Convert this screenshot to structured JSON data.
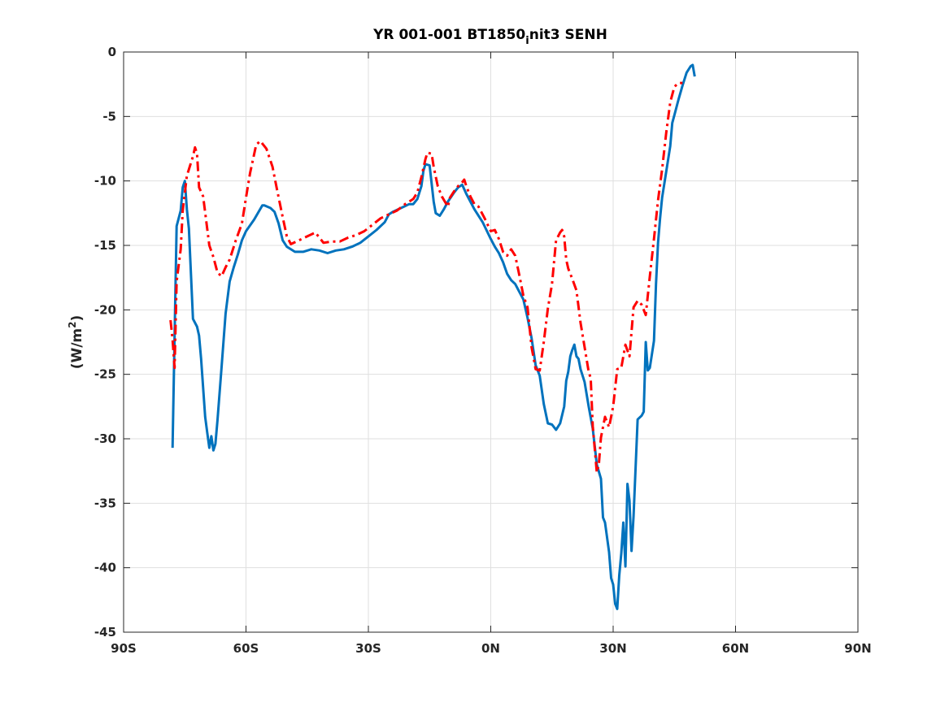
{
  "chart_data": {
    "type": "line",
    "title": "YR 001-001 BT1850",
    "title_sub": "i",
    "title_rest": "nit3 SENH",
    "ylabel": "(W/m",
    "ylabel_sup": "2",
    "ylabel_end": ")",
    "xlabel": "",
    "xlim": [
      -90,
      90
    ],
    "ylim": [
      -45,
      0
    ],
    "grid": true,
    "x_ticks": [
      {
        "value": -90,
        "label": "90S"
      },
      {
        "value": -60,
        "label": "60S"
      },
      {
        "value": -30,
        "label": "30S"
      },
      {
        "value": 0,
        "label": "0N"
      },
      {
        "value": 30,
        "label": "30N"
      },
      {
        "value": 60,
        "label": "60N"
      },
      {
        "value": 90,
        "label": "90N"
      }
    ],
    "y_ticks": [
      {
        "value": 0,
        "label": "0"
      },
      {
        "value": -5,
        "label": "-5"
      },
      {
        "value": -10,
        "label": "-10"
      },
      {
        "value": -15,
        "label": "-15"
      },
      {
        "value": -20,
        "label": "-20"
      },
      {
        "value": -25,
        "label": "-25"
      },
      {
        "value": -30,
        "label": "-30"
      },
      {
        "value": -35,
        "label": "-35"
      },
      {
        "value": -40,
        "label": "-40"
      },
      {
        "value": -45,
        "label": "-45"
      }
    ],
    "series": [
      {
        "color": "#0072bd",
        "style": "solid",
        "points": [
          [
            -78,
            -30.7
          ],
          [
            -77.5,
            -22
          ],
          [
            -77,
            -13.5
          ],
          [
            -76,
            -12.3
          ],
          [
            -75.5,
            -10.5
          ],
          [
            -75,
            -10
          ],
          [
            -74.5,
            -12.2
          ],
          [
            -74,
            -13.7
          ],
          [
            -73,
            -20.7
          ],
          [
            -72,
            -21.3
          ],
          [
            -71.5,
            -22
          ],
          [
            -71,
            -23.8
          ],
          [
            -70,
            -28.3
          ],
          [
            -69.5,
            -29.5
          ],
          [
            -69,
            -30.7
          ],
          [
            -68.5,
            -29.8
          ],
          [
            -68,
            -30.9
          ],
          [
            -67.5,
            -30.4
          ],
          [
            -67,
            -28.6
          ],
          [
            -66,
            -24.5
          ],
          [
            -65,
            -20.3
          ],
          [
            -64,
            -17.8
          ],
          [
            -63,
            -16.7
          ],
          [
            -62,
            -15.7
          ],
          [
            -61,
            -14.6
          ],
          [
            -60,
            -13.9
          ],
          [
            -58,
            -13
          ],
          [
            -56,
            -11.9
          ],
          [
            -55.5,
            -11.9
          ],
          [
            -54,
            -12.1
          ],
          [
            -53,
            -12.4
          ],
          [
            -52,
            -13.3
          ],
          [
            -51,
            -14.6
          ],
          [
            -50,
            -15.1
          ],
          [
            -48,
            -15.5
          ],
          [
            -46,
            -15.5
          ],
          [
            -44,
            -15.3
          ],
          [
            -42,
            -15.4
          ],
          [
            -40,
            -15.6
          ],
          [
            -38,
            -15.4
          ],
          [
            -36,
            -15.3
          ],
          [
            -34,
            -15.1
          ],
          [
            -32,
            -14.8
          ],
          [
            -30,
            -14.3
          ],
          [
            -28,
            -13.8
          ],
          [
            -26,
            -13.2
          ],
          [
            -25,
            -12.6
          ],
          [
            -24,
            -12.4
          ],
          [
            -22,
            -12.1
          ],
          [
            -20,
            -11.8
          ],
          [
            -19,
            -11.8
          ],
          [
            -18,
            -11.4
          ],
          [
            -17,
            -10.4
          ],
          [
            -16.5,
            -9.2
          ],
          [
            -16,
            -8.7
          ],
          [
            -15,
            -8.8
          ],
          [
            -14.5,
            -10.2
          ],
          [
            -14,
            -11.6
          ],
          [
            -13.5,
            -12.5
          ],
          [
            -12.5,
            -12.7
          ],
          [
            -11.5,
            -12.2
          ],
          [
            -10.5,
            -11.6
          ],
          [
            -9,
            -10.9
          ],
          [
            -8,
            -10.5
          ],
          [
            -7,
            -10.3
          ],
          [
            -6,
            -11
          ],
          [
            -4,
            -12.2
          ],
          [
            -2,
            -13.2
          ],
          [
            0,
            -14.5
          ],
          [
            1,
            -15.1
          ],
          [
            2,
            -15.6
          ],
          [
            3,
            -16.3
          ],
          [
            4,
            -17.2
          ],
          [
            5,
            -17.7
          ],
          [
            6,
            -18
          ],
          [
            7,
            -18.6
          ],
          [
            8,
            -19.2
          ],
          [
            9,
            -20.6
          ],
          [
            10,
            -22.2
          ],
          [
            11,
            -24.3
          ],
          [
            12,
            -25.1
          ],
          [
            13,
            -27.3
          ],
          [
            14,
            -28.8
          ],
          [
            15,
            -28.9
          ],
          [
            16,
            -29.3
          ],
          [
            17,
            -28.8
          ],
          [
            18,
            -27.5
          ],
          [
            18.5,
            -25.5
          ],
          [
            19,
            -24.8
          ],
          [
            19.5,
            -23.6
          ],
          [
            20,
            -23.1
          ],
          [
            20.5,
            -22.7
          ],
          [
            21,
            -23.6
          ],
          [
            21.5,
            -23.8
          ],
          [
            22,
            -24.6
          ],
          [
            23,
            -25.6
          ],
          [
            24,
            -27.5
          ],
          [
            25,
            -29.2
          ],
          [
            26,
            -32
          ],
          [
            27,
            -33.1
          ],
          [
            27.5,
            -36.1
          ],
          [
            28,
            -36.5
          ],
          [
            29,
            -38.8
          ],
          [
            29.5,
            -40.8
          ],
          [
            30,
            -41.3
          ],
          [
            30.5,
            -42.8
          ],
          [
            31,
            -43.2
          ],
          [
            31.5,
            -40.6
          ],
          [
            32,
            -38.9
          ],
          [
            32.5,
            -36.5
          ],
          [
            33,
            -39.9
          ],
          [
            33.5,
            -33.5
          ],
          [
            34,
            -34.8
          ],
          [
            34.5,
            -38.7
          ],
          [
            35,
            -36
          ],
          [
            36,
            -28.5
          ],
          [
            37,
            -28.2
          ],
          [
            37.5,
            -27.9
          ],
          [
            38,
            -22.5
          ],
          [
            38.5,
            -24.7
          ],
          [
            39,
            -24.5
          ],
          [
            40,
            -22.4
          ],
          [
            40.5,
            -18
          ],
          [
            41,
            -14.8
          ],
          [
            41.5,
            -12.9
          ],
          [
            42,
            -11.3
          ],
          [
            43,
            -9.3
          ],
          [
            44,
            -7.3
          ],
          [
            44.5,
            -5.5
          ],
          [
            45,
            -4.9
          ],
          [
            45.5,
            -4.3
          ],
          [
            46,
            -3.7
          ],
          [
            47,
            -2.6
          ],
          [
            48,
            -1.6
          ],
          [
            49,
            -1.1
          ],
          [
            49.5,
            -1
          ],
          [
            50,
            -1.9
          ]
        ]
      },
      {
        "color": "#ff0000",
        "style": "dashdot",
        "points": [
          [
            -78.5,
            -20.8
          ],
          [
            -78,
            -22.3
          ],
          [
            -77.5,
            -24.5
          ],
          [
            -77,
            -17.8
          ],
          [
            -76,
            -15.3
          ],
          [
            -75.5,
            -12.3
          ],
          [
            -74.5,
            -9.6
          ],
          [
            -73,
            -8.1
          ],
          [
            -72.5,
            -7.4
          ],
          [
            -72,
            -7.9
          ],
          [
            -71.5,
            -10.5
          ],
          [
            -70.5,
            -11.2
          ],
          [
            -69,
            -15
          ],
          [
            -68,
            -15.9
          ],
          [
            -67,
            -17.1
          ],
          [
            -66,
            -17.4
          ],
          [
            -65,
            -16.7
          ],
          [
            -64,
            -16.1
          ],
          [
            -62.5,
            -14.6
          ],
          [
            -61,
            -13.3
          ],
          [
            -60,
            -11.3
          ],
          [
            -59,
            -9.4
          ],
          [
            -57.5,
            -7.2
          ],
          [
            -56.5,
            -6.9
          ],
          [
            -55,
            -7.5
          ],
          [
            -53.5,
            -8.9
          ],
          [
            -52.5,
            -10.5
          ],
          [
            -51,
            -12.8
          ],
          [
            -50,
            -14.3
          ],
          [
            -49,
            -14.9
          ],
          [
            -47,
            -14.6
          ],
          [
            -45,
            -14.3
          ],
          [
            -43,
            -14
          ],
          [
            -42,
            -14.4
          ],
          [
            -41,
            -14.8
          ],
          [
            -39,
            -14.7
          ],
          [
            -37,
            -14.7
          ],
          [
            -35,
            -14.4
          ],
          [
            -33,
            -14.2
          ],
          [
            -31,
            -13.9
          ],
          [
            -29,
            -13.4
          ],
          [
            -27,
            -12.9
          ],
          [
            -25,
            -12.6
          ],
          [
            -23,
            -12.3
          ],
          [
            -21,
            -11.8
          ],
          [
            -19,
            -11.4
          ],
          [
            -18,
            -10.9
          ],
          [
            -17,
            -9.7
          ],
          [
            -16,
            -8.3
          ],
          [
            -15.5,
            -7.8
          ],
          [
            -14.5,
            -7.9
          ],
          [
            -14,
            -8.9
          ],
          [
            -13,
            -10.4
          ],
          [
            -12,
            -11.2
          ],
          [
            -10.5,
            -12
          ],
          [
            -10,
            -11.3
          ],
          [
            -9,
            -10.8
          ],
          [
            -8,
            -10.4
          ],
          [
            -7,
            -10.1
          ],
          [
            -6.5,
            -9.9
          ],
          [
            -6,
            -10.4
          ],
          [
            -5,
            -11.2
          ],
          [
            -4,
            -11.8
          ],
          [
            -3,
            -12
          ],
          [
            -1.5,
            -12.9
          ],
          [
            0,
            -13.9
          ],
          [
            1,
            -13.8
          ],
          [
            2,
            -14.5
          ],
          [
            3,
            -15.5
          ],
          [
            4,
            -15.8
          ],
          [
            5,
            -15.3
          ],
          [
            6,
            -15.8
          ],
          [
            7,
            -17.3
          ],
          [
            8,
            -18.9
          ],
          [
            9,
            -19.8
          ],
          [
            10,
            -22.9
          ],
          [
            11,
            -24.6
          ],
          [
            12,
            -24.7
          ],
          [
            13,
            -22.5
          ],
          [
            14,
            -19.9
          ],
          [
            15,
            -18
          ],
          [
            16,
            -14.6
          ],
          [
            17,
            -14
          ],
          [
            17.5,
            -13.8
          ],
          [
            18,
            -14.3
          ],
          [
            18.5,
            -16.1
          ],
          [
            19,
            -16.8
          ],
          [
            20,
            -17.6
          ],
          [
            21,
            -18.5
          ],
          [
            22,
            -21
          ],
          [
            23,
            -22.9
          ],
          [
            24,
            -24.8
          ],
          [
            24.5,
            -25.3
          ],
          [
            25,
            -29
          ],
          [
            26,
            -32.6
          ],
          [
            26.5,
            -32
          ],
          [
            27,
            -29.9
          ],
          [
            28,
            -28.3
          ],
          [
            29,
            -29.1
          ],
          [
            30,
            -27.5
          ],
          [
            31,
            -24.6
          ],
          [
            32,
            -24.5
          ],
          [
            33,
            -22.7
          ],
          [
            34,
            -23.6
          ],
          [
            35,
            -19.8
          ],
          [
            36,
            -19.3
          ],
          [
            37,
            -19.6
          ],
          [
            38,
            -20.4
          ],
          [
            39,
            -17.4
          ],
          [
            40,
            -14.5
          ],
          [
            41,
            -11.5
          ],
          [
            42,
            -9.1
          ],
          [
            43,
            -6.3
          ],
          [
            44,
            -3.9
          ],
          [
            45,
            -2.7
          ],
          [
            46,
            -2.4
          ],
          [
            47,
            -2.4
          ]
        ]
      }
    ]
  }
}
